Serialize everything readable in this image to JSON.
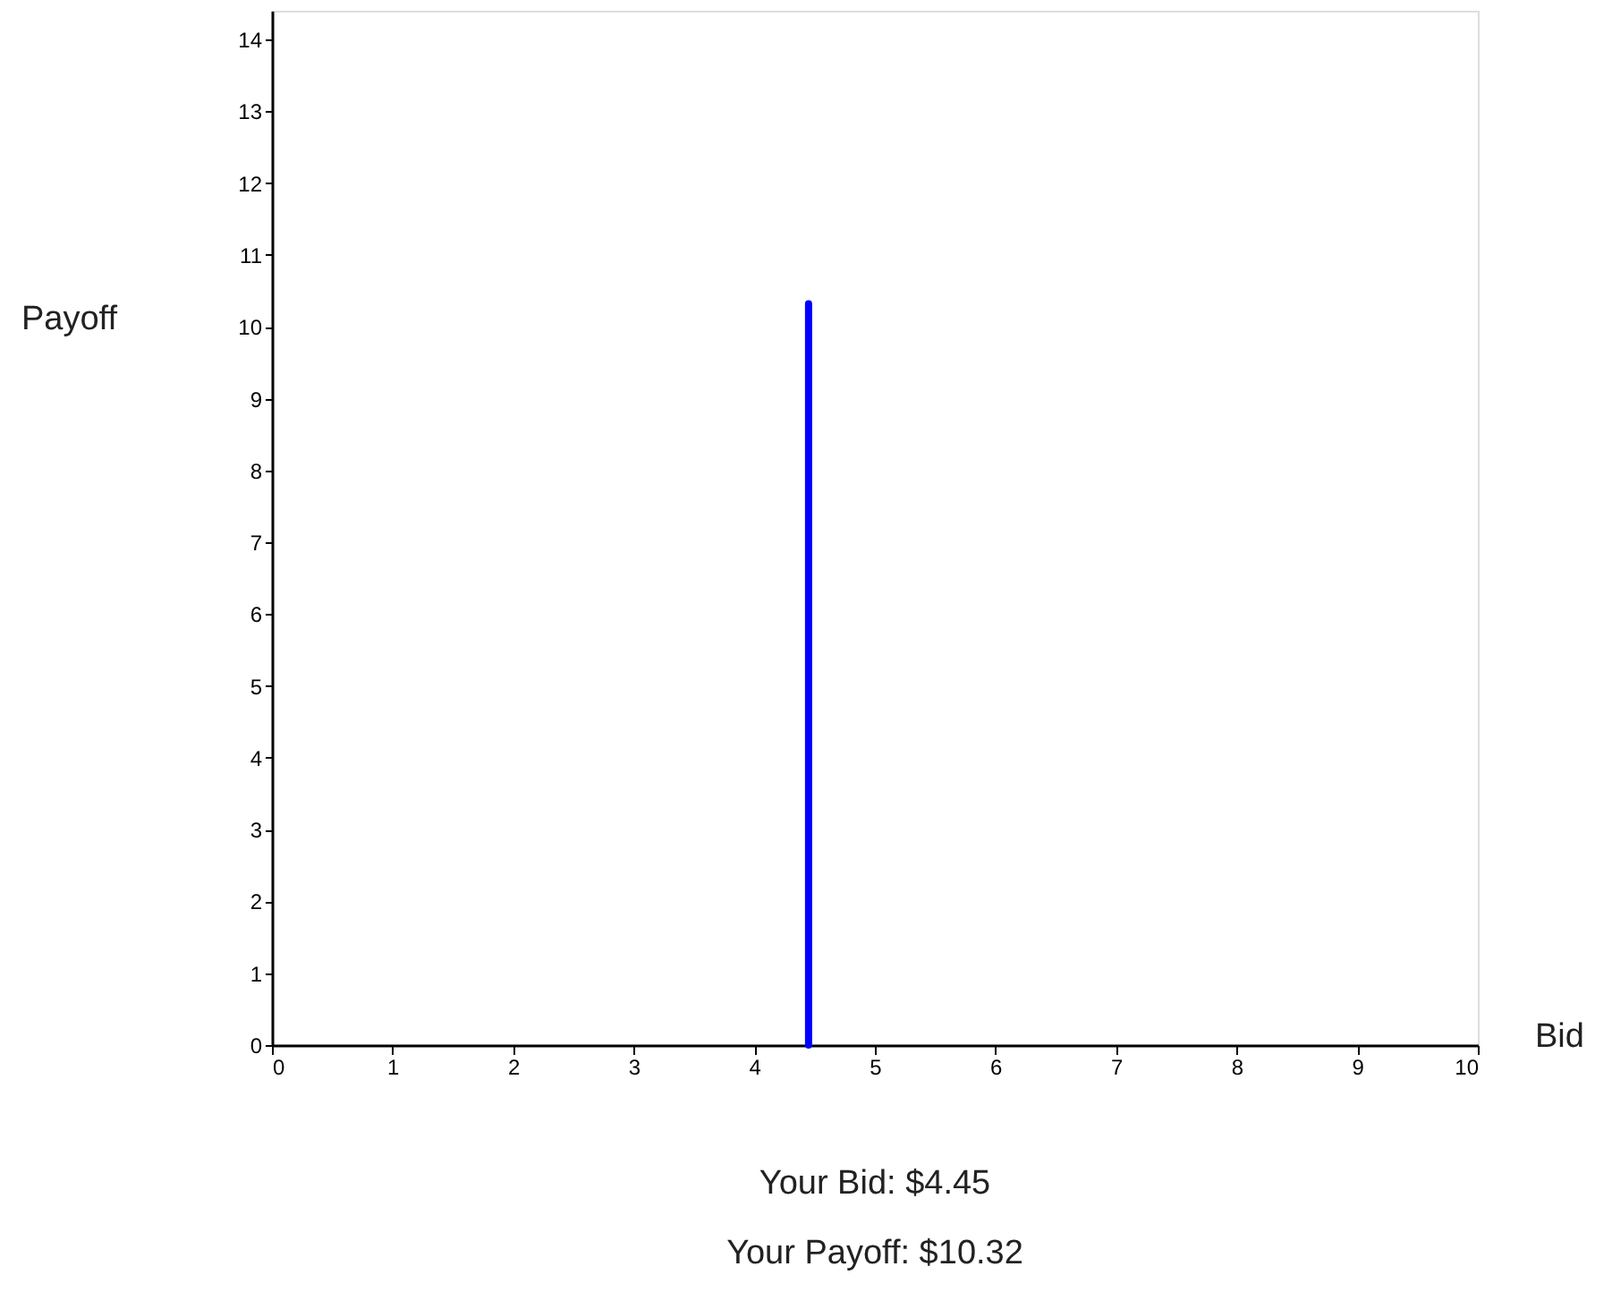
{
  "chart_data": {
    "type": "bar",
    "x": [
      4.45
    ],
    "series": [
      {
        "color": "#0000ff",
        "values": [
          10.32
        ]
      }
    ],
    "xlabel": "Bid",
    "ylabel": "Payoff",
    "xlim": [
      0,
      10
    ],
    "xticks": [
      0,
      1,
      2,
      3,
      4,
      5,
      6,
      7,
      8,
      9,
      10
    ],
    "ylim": [
      0,
      14.4
    ],
    "yticks": [
      0,
      1,
      2,
      3,
      4,
      5,
      6,
      7,
      8,
      9,
      10,
      11,
      12,
      13,
      14
    ],
    "grid": false,
    "annotations": [
      "Your Bid: $4.45",
      "Your Payoff: $10.32"
    ]
  }
}
